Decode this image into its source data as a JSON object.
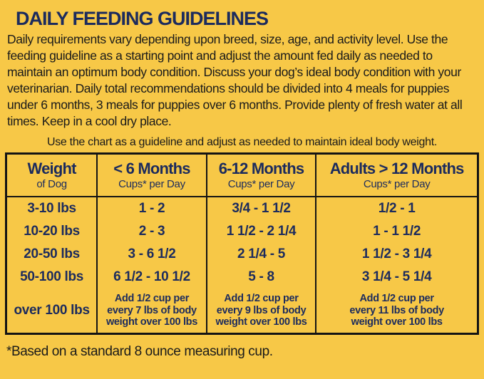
{
  "title": "DAILY FEEDING GUIDELINES",
  "intro": "Daily requirements vary depending upon breed, size, age, and activity level. Use the feeding guideline as a starting point and adjust the amount fed daily as needed to maintain an optimum body condition. Discuss your dog’s ideal body condition with your veterinarian. Daily total recommendations should be divided into 4 meals for puppies under 6 months, 3 meals for puppies over 6 months. Provide plenty of fresh water at all times. Keep in a cool dry place.",
  "note": "Use the chart as a guideline and adjust as needed to maintain ideal body weight.",
  "footnote": "*Based on a standard 8 ounce measuring cup.",
  "colors": {
    "background": "#F7C847",
    "navy_text": "#1C2B5D",
    "black_text": "#1A1A1A",
    "table_border": "#141414"
  },
  "table": {
    "headers": [
      {
        "main": "Weight",
        "sub": "of Dog"
      },
      {
        "main": "< 6 Months",
        "sub": "Cups* per Day"
      },
      {
        "main": "6-12 Months",
        "sub": "Cups* per Day"
      },
      {
        "main": "Adults > 12 Months",
        "sub": "Cups* per Day"
      }
    ],
    "weights": [
      "3-10 lbs",
      "10-20 lbs",
      "20-50 lbs",
      "50-100 lbs",
      "over 100 lbs"
    ],
    "columns": [
      {
        "values": [
          "1 - 2",
          "2 - 3",
          "3 - 6 1/2",
          "6 1/2 - 10 1/2"
        ],
        "note_lines": [
          "Add 1/2 cup per",
          "every 7 lbs of body",
          "weight over 100 lbs"
        ]
      },
      {
        "values": [
          "3/4 - 1 1/2",
          "1 1/2 - 2 1/4",
          "2 1/4 - 5",
          "5 - 8"
        ],
        "note_lines": [
          "Add 1/2 cup per",
          "every 9 lbs of body",
          "weight over 100 lbs"
        ]
      },
      {
        "values": [
          "1/2 - 1",
          "1 - 1 1/2",
          "1 1/2 - 3 1/4",
          "3 1/4 - 5 1/4"
        ],
        "note_lines": [
          "Add 1/2 cup per",
          "every 11 lbs of body",
          "weight over 100 lbs"
        ]
      }
    ]
  },
  "chart_data": {
    "type": "table",
    "title": "DAILY FEEDING GUIDELINES",
    "columns": [
      "Weight of Dog",
      "< 6 Months Cups* per Day",
      "6-12 Months Cups* per Day",
      "Adults > 12 Months Cups* per Day"
    ],
    "rows": [
      [
        "3-10 lbs",
        "1 - 2",
        "3/4 - 1 1/2",
        "1/2 - 1"
      ],
      [
        "10-20 lbs",
        "2 - 3",
        "1 1/2 - 2 1/4",
        "1 - 1 1/2"
      ],
      [
        "20-50 lbs",
        "3 - 6 1/2",
        "2 1/4 - 5",
        "1 1/2 - 3 1/4"
      ],
      [
        "50-100 lbs",
        "6 1/2 - 10 1/2",
        "5 - 8",
        "3 1/4 - 5 1/4"
      ],
      [
        "over 100 lbs",
        "Add 1/2 cup per every 7 lbs of body weight over 100 lbs",
        "Add 1/2 cup per every 9 lbs of body weight over 100 lbs",
        "Add 1/2 cup per every 11 lbs of body weight over 100 lbs"
      ]
    ]
  }
}
